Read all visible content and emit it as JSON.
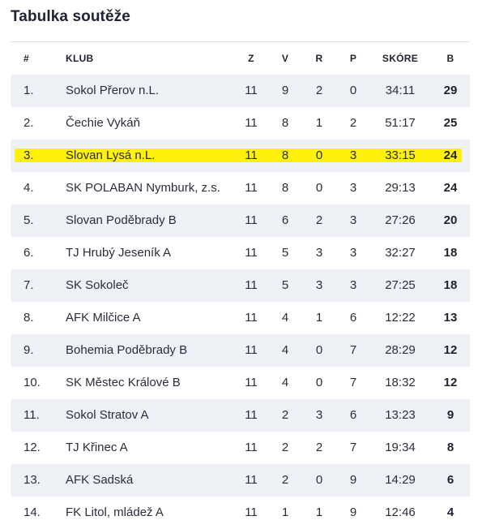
{
  "title": "Tabulka soutěže",
  "columns": {
    "pos": "#",
    "club": "KLUB",
    "z": "Z",
    "v": "V",
    "r": "R",
    "p": "P",
    "score": "SKÓRE",
    "b": "B"
  },
  "rows": [
    {
      "pos": "1.",
      "club": "Sokol Přerov n.L.",
      "z": "11",
      "v": "9",
      "r": "2",
      "p": "0",
      "score": "34:11",
      "b": "29"
    },
    {
      "pos": "2.",
      "club": "Čechie Vykáň",
      "z": "11",
      "v": "8",
      "r": "1",
      "p": "2",
      "score": "51:17",
      "b": "25"
    },
    {
      "pos": "3.",
      "club": "Slovan Lysá n.L.",
      "z": "11",
      "v": "8",
      "r": "0",
      "p": "3",
      "score": "33:15",
      "b": "24",
      "highlighted": true
    },
    {
      "pos": "4.",
      "club": "SK POLABAN Nymburk, z.s.",
      "z": "11",
      "v": "8",
      "r": "0",
      "p": "3",
      "score": "29:13",
      "b": "24"
    },
    {
      "pos": "5.",
      "club": "Slovan Poděbrady B",
      "z": "11",
      "v": "6",
      "r": "2",
      "p": "3",
      "score": "27:26",
      "b": "20"
    },
    {
      "pos": "6.",
      "club": "TJ Hrubý Jeseník A",
      "z": "11",
      "v": "5",
      "r": "3",
      "p": "3",
      "score": "32:27",
      "b": "18"
    },
    {
      "pos": "7.",
      "club": "SK Sokoleč",
      "z": "11",
      "v": "5",
      "r": "3",
      "p": "3",
      "score": "27:25",
      "b": "18"
    },
    {
      "pos": "8.",
      "club": "AFK Milčice A",
      "z": "11",
      "v": "4",
      "r": "1",
      "p": "6",
      "score": "12:22",
      "b": "13"
    },
    {
      "pos": "9.",
      "club": "Bohemia Poděbrady B",
      "z": "11",
      "v": "4",
      "r": "0",
      "p": "7",
      "score": "28:29",
      "b": "12"
    },
    {
      "pos": "10.",
      "club": "SK Městec Králové B",
      "z": "11",
      "v": "4",
      "r": "0",
      "p": "7",
      "score": "18:32",
      "b": "12"
    },
    {
      "pos": "11.",
      "club": "Sokol Stratov A",
      "z": "11",
      "v": "2",
      "r": "3",
      "p": "6",
      "score": "13:23",
      "b": "9"
    },
    {
      "pos": "12.",
      "club": "TJ Křinec A",
      "z": "11",
      "v": "2",
      "r": "2",
      "p": "7",
      "score": "19:34",
      "b": "8"
    },
    {
      "pos": "13.",
      "club": "AFK Sadská",
      "z": "11",
      "v": "2",
      "r": "0",
      "p": "9",
      "score": "14:29",
      "b": "6"
    },
    {
      "pos": "14.",
      "club": "FK Litol, mládež A",
      "z": "11",
      "v": "1",
      "r": "1",
      "p": "9",
      "score": "12:46",
      "b": "4"
    }
  ],
  "colors": {
    "row_alt": "#eef1f6",
    "highlight": "#ffef00",
    "text": "#2a2e3c"
  }
}
